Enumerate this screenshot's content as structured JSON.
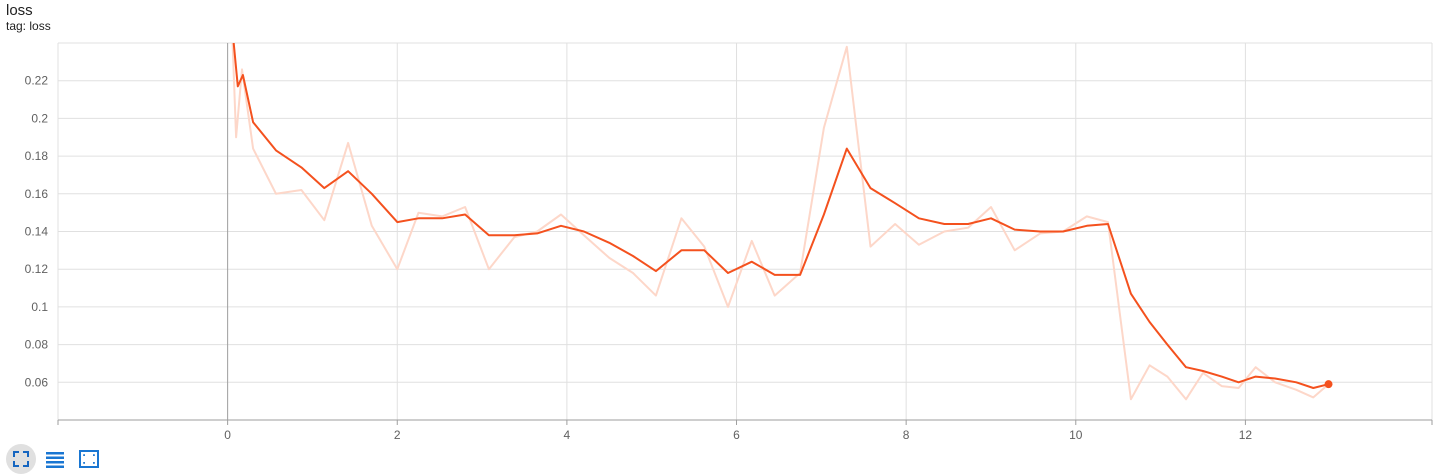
{
  "card": {
    "title": "loss",
    "tag": "tag: loss"
  },
  "toolbar": {
    "buttons": [
      {
        "name": "fit-domain-button",
        "icon": "fullscreen-icon"
      },
      {
        "name": "toggle-log-scale-button",
        "icon": "list-lines-icon"
      },
      {
        "name": "fit-to-data-button",
        "icon": "selection-box-icon"
      }
    ]
  },
  "colors": {
    "smoothed": "#f4511e",
    "raw": "#fdd7c9",
    "grid": "#e0e0e0",
    "axis": "#9e9e9e",
    "tick_text": "#616161"
  },
  "chart_data": {
    "type": "line",
    "title": "loss",
    "xlabel": "",
    "ylabel": "",
    "xlim": [
      -2,
      14.2
    ],
    "ylim": [
      0.04,
      0.24
    ],
    "x_ticks": [
      0,
      2,
      4,
      6,
      8,
      10,
      12
    ],
    "x_tick_labels": [
      "0",
      "2",
      "4",
      "6",
      "8",
      "10",
      "12"
    ],
    "y_ticks": [
      0.06,
      0.08,
      0.1,
      0.12,
      0.14,
      0.16,
      0.18,
      0.2,
      0.22
    ],
    "y_tick_labels": [
      "0.06",
      "0.08",
      "0.1",
      "0.12",
      "0.14",
      "0.16",
      "0.18",
      "0.2",
      "0.22"
    ],
    "grid": true,
    "series": [
      {
        "key": "raw",
        "points": [
          [
            0.05,
            0.25
          ],
          [
            0.1,
            0.19
          ],
          [
            0.17,
            0.226
          ],
          [
            0.3,
            0.184
          ],
          [
            0.57,
            0.16
          ],
          [
            0.87,
            0.162
          ],
          [
            1.14,
            0.146
          ],
          [
            1.42,
            0.187
          ],
          [
            1.7,
            0.143
          ],
          [
            2.0,
            0.12
          ],
          [
            2.25,
            0.15
          ],
          [
            2.53,
            0.148
          ],
          [
            2.8,
            0.153
          ],
          [
            3.08,
            0.12
          ],
          [
            3.38,
            0.137
          ],
          [
            3.65,
            0.14
          ],
          [
            3.93,
            0.149
          ],
          [
            4.2,
            0.138
          ],
          [
            4.5,
            0.126
          ],
          [
            4.78,
            0.118
          ],
          [
            5.05,
            0.106
          ],
          [
            5.35,
            0.147
          ],
          [
            5.62,
            0.132
          ],
          [
            5.9,
            0.1
          ],
          [
            6.18,
            0.135
          ],
          [
            6.45,
            0.106
          ],
          [
            6.75,
            0.118
          ],
          [
            7.03,
            0.195
          ],
          [
            7.3,
            0.238
          ],
          [
            7.58,
            0.132
          ],
          [
            7.87,
            0.144
          ],
          [
            8.15,
            0.133
          ],
          [
            8.45,
            0.14
          ],
          [
            8.73,
            0.142
          ],
          [
            9.0,
            0.153
          ],
          [
            9.28,
            0.13
          ],
          [
            9.58,
            0.139
          ],
          [
            9.85,
            0.14
          ],
          [
            10.13,
            0.148
          ],
          [
            10.38,
            0.145
          ],
          [
            10.65,
            0.051
          ],
          [
            10.87,
            0.069
          ],
          [
            11.08,
            0.063
          ],
          [
            11.3,
            0.051
          ],
          [
            11.5,
            0.065
          ],
          [
            11.72,
            0.058
          ],
          [
            11.92,
            0.057
          ],
          [
            12.12,
            0.068
          ],
          [
            12.35,
            0.06
          ],
          [
            12.6,
            0.056
          ],
          [
            12.8,
            0.052
          ],
          [
            12.98,
            0.059
          ]
        ]
      },
      {
        "key": "smoothed",
        "points": [
          [
            0.05,
            0.25
          ],
          [
            0.12,
            0.217
          ],
          [
            0.18,
            0.223
          ],
          [
            0.3,
            0.198
          ],
          [
            0.57,
            0.183
          ],
          [
            0.87,
            0.174
          ],
          [
            1.14,
            0.163
          ],
          [
            1.42,
            0.172
          ],
          [
            1.7,
            0.16
          ],
          [
            2.0,
            0.145
          ],
          [
            2.25,
            0.147
          ],
          [
            2.53,
            0.147
          ],
          [
            2.8,
            0.149
          ],
          [
            3.08,
            0.138
          ],
          [
            3.38,
            0.138
          ],
          [
            3.65,
            0.139
          ],
          [
            3.93,
            0.143
          ],
          [
            4.2,
            0.14
          ],
          [
            4.5,
            0.134
          ],
          [
            4.78,
            0.127
          ],
          [
            5.05,
            0.119
          ],
          [
            5.35,
            0.13
          ],
          [
            5.62,
            0.13
          ],
          [
            5.9,
            0.118
          ],
          [
            6.18,
            0.124
          ],
          [
            6.45,
            0.117
          ],
          [
            6.75,
            0.117
          ],
          [
            7.03,
            0.149
          ],
          [
            7.3,
            0.184
          ],
          [
            7.58,
            0.163
          ],
          [
            7.87,
            0.155
          ],
          [
            8.15,
            0.147
          ],
          [
            8.45,
            0.144
          ],
          [
            8.73,
            0.144
          ],
          [
            9.0,
            0.147
          ],
          [
            9.28,
            0.141
          ],
          [
            9.58,
            0.14
          ],
          [
            9.85,
            0.14
          ],
          [
            10.13,
            0.143
          ],
          [
            10.38,
            0.144
          ],
          [
            10.65,
            0.107
          ],
          [
            10.87,
            0.092
          ],
          [
            11.08,
            0.08
          ],
          [
            11.3,
            0.068
          ],
          [
            11.5,
            0.066
          ],
          [
            11.72,
            0.063
          ],
          [
            11.92,
            0.06
          ],
          [
            12.12,
            0.063
          ],
          [
            12.35,
            0.062
          ],
          [
            12.6,
            0.06
          ],
          [
            12.8,
            0.057
          ],
          [
            12.98,
            0.059
          ]
        ]
      }
    ]
  }
}
